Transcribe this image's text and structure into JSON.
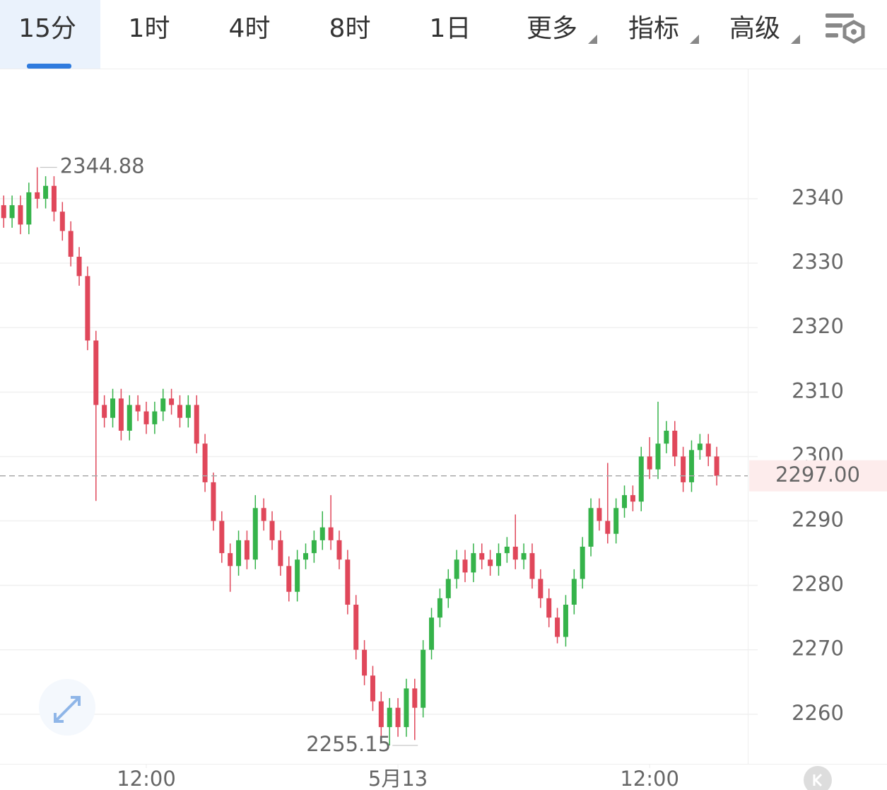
{
  "toolbar": {
    "tabs": [
      "15分",
      "1时",
      "4时",
      "8时",
      "1日",
      "更多",
      "指标",
      "高级"
    ]
  },
  "chart_data": {
    "type": "candlestick",
    "open": [
      2339,
      2337,
      2339,
      2336,
      2341,
      2340,
      2342,
      2338,
      2335,
      2331,
      2328,
      2318,
      2308,
      2306,
      2309,
      2304,
      2308,
      2307,
      2305,
      2307,
      2309,
      2308,
      2306,
      2308,
      2302,
      2296,
      2290,
      2285,
      2283,
      2287,
      2284,
      2292,
      2290,
      2287,
      2283,
      2279,
      2284,
      2285,
      2287,
      2289,
      2287,
      2284,
      2277,
      2270,
      2266,
      2262,
      2258,
      2261,
      2258,
      2264,
      2261,
      2270,
      2275,
      2278,
      2281,
      2284,
      2282,
      2285,
      2284,
      2283,
      2285,
      2286,
      2284,
      2285,
      2281,
      2278,
      2275,
      2272,
      2277,
      2281,
      2286,
      2292,
      2290,
      2288,
      2292,
      2294,
      2293,
      2300,
      2298,
      2302,
      2304,
      2300,
      2296,
      2301,
      2302,
      2300
    ],
    "high": [
      2340.5,
      2340.5,
      2340.5,
      2342.5,
      2344.88,
      2343.5,
      2343.5,
      2339.5,
      2336.5,
      2332.5,
      2329.5,
      2319.5,
      2309.5,
      2310.5,
      2310.5,
      2309.5,
      2309.5,
      2308.5,
      2308.5,
      2310.5,
      2310.5,
      2309.5,
      2309.5,
      2309.5,
      2303.5,
      2297.5,
      2291.5,
      2286.5,
      2288.5,
      2288.5,
      2294,
      2293.5,
      2291.5,
      2288.5,
      2284.5,
      2285.5,
      2286.5,
      2288.5,
      2291.5,
      2294,
      2288.5,
      2285.5,
      2278.5,
      2271.5,
      2267.5,
      2263.5,
      2262.5,
      2262.5,
      2265.5,
      2265.5,
      2271.5,
      2276.5,
      2279.5,
      2282.5,
      2285.5,
      2285.5,
      2286.5,
      2286.5,
      2285.5,
      2286.5,
      2287.5,
      2291,
      2286.5,
      2286.5,
      2282.5,
      2279.5,
      2276.5,
      2278.5,
      2282.5,
      2287.5,
      2293.5,
      2293.5,
      2299,
      2293.5,
      2295.5,
      2295.5,
      2301.5,
      2303,
      2308.5,
      2305.5,
      2305.5,
      2301.5,
      2302.5,
      2303.5,
      2303.5,
      2301.5
    ],
    "low": [
      2335.5,
      2335.5,
      2334.5,
      2334.5,
      2338.5,
      2338.5,
      2336.5,
      2333.5,
      2329.5,
      2326.5,
      2316.5,
      2293.1,
      2304.5,
      2304.5,
      2302.5,
      2302.5,
      2305.5,
      2303.5,
      2303.5,
      2305.5,
      2306.5,
      2304.5,
      2304.5,
      2300.5,
      2294.5,
      2288.5,
      2283.5,
      2279,
      2281.5,
      2282.5,
      2282.5,
      2288.5,
      2285.5,
      2281.5,
      2277.5,
      2277.5,
      2282.5,
      2283.5,
      2285.5,
      2285.5,
      2282.5,
      2275.5,
      2268.5,
      2264.5,
      2260.5,
      2256.5,
      2255.15,
      2256.5,
      2256.5,
      2256,
      2259.5,
      2268.5,
      2273.5,
      2276.5,
      2279.5,
      2280.5,
      2280.5,
      2282.5,
      2281.5,
      2281.5,
      2283.5,
      2282.5,
      2282.5,
      2279.5,
      2276.5,
      2273.5,
      2271,
      2270.5,
      2275.5,
      2279.5,
      2284.5,
      2288.5,
      2286.5,
      2286.5,
      2290.5,
      2291.5,
      2291.5,
      2296.5,
      2296.5,
      2300.5,
      2298.5,
      2294.5,
      2294.5,
      2299.5,
      2298.5,
      2295.5
    ],
    "close": [
      2337,
      2339,
      2336,
      2341,
      2340,
      2342,
      2338,
      2335,
      2331,
      2328,
      2318,
      2308,
      2306,
      2309,
      2304,
      2308,
      2307,
      2305,
      2307,
      2309,
      2308,
      2306,
      2308,
      2302,
      2296,
      2290,
      2285,
      2283,
      2287,
      2284,
      2292,
      2290,
      2287,
      2283,
      2279,
      2284,
      2285,
      2287,
      2289,
      2287,
      2284,
      2277,
      2270,
      2266,
      2262,
      2258,
      2261,
      2258,
      2264,
      2261,
      2270,
      2275,
      2278,
      2281,
      2284,
      2282,
      2285,
      2284,
      2283,
      2285,
      2286,
      2284,
      2285,
      2281,
      2278,
      2275,
      2272,
      2277,
      2281,
      2286,
      2292,
      2290,
      2288,
      2292,
      2294,
      2293,
      2300,
      2298,
      2302,
      2304,
      2300,
      2296,
      2301,
      2302,
      2300,
      2297
    ],
    "up_color": "#35b34a",
    "down_color": "#e0475a",
    "xlim": [
      -0.44,
      88.7
    ],
    "xticks": [
      {
        "value": 17,
        "label": "12:00"
      },
      {
        "value": 47,
        "label": "5月13"
      },
      {
        "value": 77,
        "label": "12:00"
      }
    ],
    "ylim": [
      2252.3,
      2360.2
    ],
    "yticks": [
      2260,
      2270,
      2280,
      2290,
      2300,
      2310,
      2320,
      2330,
      2340
    ],
    "grid": true,
    "last_price": {
      "value": 2297,
      "label": "2297.00"
    }
  }
}
